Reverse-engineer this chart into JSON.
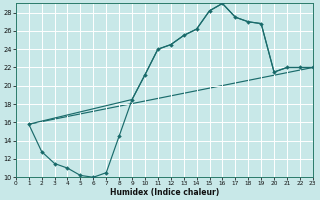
{
  "bg_color": "#c8e8e8",
  "grid_color": "#ffffff",
  "line_color": "#1a6b6b",
  "xlim": [
    0,
    23
  ],
  "ylim": [
    10,
    29
  ],
  "xticks": [
    0,
    1,
    2,
    3,
    4,
    5,
    6,
    7,
    8,
    9,
    10,
    11,
    12,
    13,
    14,
    15,
    16,
    17,
    18,
    19,
    20,
    21,
    22,
    23
  ],
  "yticks": [
    10,
    12,
    14,
    16,
    18,
    20,
    22,
    24,
    26,
    28
  ],
  "xlabel": "Humidex (Indice chaleur)",
  "curve_main_x": [
    1,
    2,
    3,
    4,
    5,
    6,
    7,
    8,
    9,
    10,
    11,
    12,
    13,
    14,
    15,
    16,
    17,
    18,
    19,
    20,
    21,
    22,
    23
  ],
  "curve_main_y": [
    15.8,
    12.8,
    11.5,
    11.0,
    10.2,
    10.0,
    10.5,
    14.5,
    18.5,
    21.2,
    24.0,
    24.5,
    25.5,
    26.2,
    28.2,
    29.0,
    27.5,
    27.0,
    26.8,
    21.5,
    22.0,
    22.0,
    22.0
  ],
  "curve_upper_x": [
    1,
    9,
    10,
    11,
    12,
    13,
    14,
    15,
    16,
    17,
    18,
    19,
    20,
    21,
    22,
    23
  ],
  "curve_upper_y": [
    15.8,
    18.5,
    21.2,
    24.0,
    24.5,
    25.5,
    26.2,
    28.2,
    29.0,
    27.5,
    27.0,
    26.8,
    21.5,
    22.0,
    22.0,
    22.0
  ],
  "curve_lower_x": [
    1,
    2,
    3,
    4,
    5,
    6,
    7,
    8,
    9,
    10,
    11,
    12,
    13,
    14,
    15,
    16,
    17,
    18,
    19,
    20,
    21,
    22,
    23
  ],
  "curve_lower_y": [
    15.8,
    12.8,
    11.5,
    11.0,
    10.2,
    10.0,
    10.5,
    14.5,
    18.5,
    21.2,
    24.0,
    24.5,
    25.5,
    26.2,
    28.2,
    29.0,
    27.5,
    27.0,
    26.8,
    21.5,
    22.0,
    22.0,
    22.0
  ],
  "trend_x": [
    1,
    23
  ],
  "trend_y": [
    15.8,
    22.0
  ]
}
